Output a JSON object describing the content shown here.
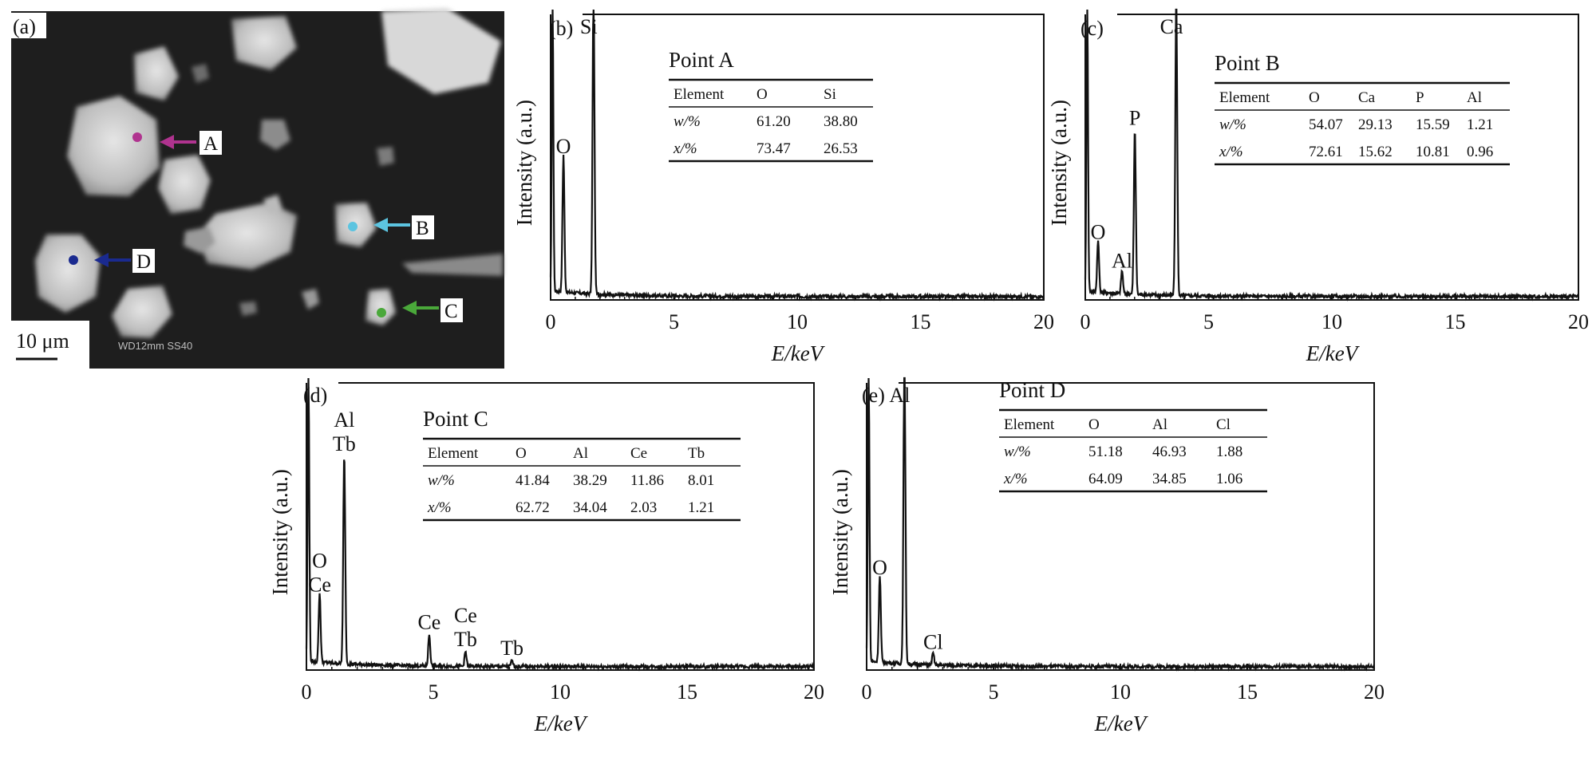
{
  "sem": {
    "panel_label": "(a)",
    "scale_bar": "10 μm",
    "overlay_text": "WD12mm   SS40",
    "points": [
      {
        "label": "A",
        "color": "#b0338f"
      },
      {
        "label": "B",
        "color": "#5cc4e0"
      },
      {
        "label": "C",
        "color": "#4aa83a"
      },
      {
        "label": "D",
        "color": "#1a2a8f"
      }
    ]
  },
  "chart_data": [
    {
      "type": "line",
      "panel_label": "(b)",
      "xlabel": "E/keV",
      "ylabel": "Intensity (a.u.)",
      "xlim": [
        0,
        20
      ],
      "xticks": [
        0,
        5,
        10,
        15,
        20
      ],
      "peaks": [
        {
          "label": "O",
          "x": 0.52,
          "height": 0.48
        },
        {
          "label": "Si",
          "x": 1.74,
          "height": 1.05
        }
      ],
      "table": {
        "title": "Point A",
        "columns": [
          "Element",
          "O",
          "Si"
        ],
        "rows": [
          {
            "label": "w/%",
            "values": [
              "61.20",
              "38.80"
            ]
          },
          {
            "label": "x/%",
            "values": [
              "73.47",
              "26.53"
            ]
          }
        ]
      }
    },
    {
      "type": "line",
      "panel_label": "(c)",
      "xlabel": "E/keV",
      "ylabel": "Intensity (a.u.)",
      "xlim": [
        0,
        20
      ],
      "xticks": [
        0,
        5,
        10,
        15,
        20
      ],
      "peaks": [
        {
          "label": "O",
          "x": 0.52,
          "height": 0.18
        },
        {
          "label": "Al",
          "x": 1.49,
          "height": 0.08
        },
        {
          "label": "P",
          "x": 2.01,
          "height": 0.58
        },
        {
          "label": "Ca",
          "x": 3.69,
          "height": 1.05
        }
      ],
      "table": {
        "title": "Point B",
        "columns": [
          "Element",
          "O",
          "Ca",
          "P",
          "Al"
        ],
        "rows": [
          {
            "label": "w/%",
            "values": [
              "54.07",
              "29.13",
              "15.59",
              "1.21"
            ]
          },
          {
            "label": "x/%",
            "values": [
              "72.61",
              "15.62",
              "10.81",
              "0.96"
            ]
          }
        ]
      }
    },
    {
      "type": "line",
      "panel_label": "(d)",
      "xlabel": "E/keV",
      "ylabel": "Intensity (a.u.)",
      "xlim": [
        0,
        20
      ],
      "xticks": [
        0,
        5,
        10,
        15,
        20
      ],
      "peaks": [
        {
          "label": "O\nCe",
          "x": 0.52,
          "height": 0.24
        },
        {
          "label": "Al\nTb",
          "x": 1.49,
          "height": 0.73
        },
        {
          "label": "Ce",
          "x": 4.84,
          "height": 0.11
        },
        {
          "label": "Ce\nTb",
          "x": 6.27,
          "height": 0.05
        },
        {
          "label": "Tb",
          "x": 8.1,
          "height": 0.02
        }
      ],
      "table": {
        "title": "Point C",
        "columns": [
          "Element",
          "O",
          "Al",
          "Ce",
          "Tb"
        ],
        "rows": [
          {
            "label": "w/%",
            "values": [
              "41.84",
              "38.29",
              "11.86",
              "8.01"
            ]
          },
          {
            "label": "x/%",
            "values": [
              "62.72",
              "34.04",
              "2.03",
              "1.21"
            ]
          }
        ]
      }
    },
    {
      "type": "line",
      "panel_label": "(e)",
      "xlabel": "E/keV",
      "ylabel": "Intensity (a.u.)",
      "xlim": [
        0,
        20
      ],
      "xticks": [
        0,
        5,
        10,
        15,
        20
      ],
      "peaks": [
        {
          "label": "O",
          "x": 0.52,
          "height": 0.3
        },
        {
          "label": "Al",
          "x": 1.49,
          "height": 1.05
        },
        {
          "label": "Cl",
          "x": 2.62,
          "height": 0.04
        }
      ],
      "table": {
        "title": "Point D",
        "columns": [
          "Element",
          "O",
          "Al",
          "Cl"
        ],
        "rows": [
          {
            "label": "w/%",
            "values": [
              "51.18",
              "46.93",
              "1.88"
            ]
          },
          {
            "label": "x/%",
            "values": [
              "64.09",
              "34.85",
              "1.06"
            ]
          }
        ]
      }
    }
  ]
}
